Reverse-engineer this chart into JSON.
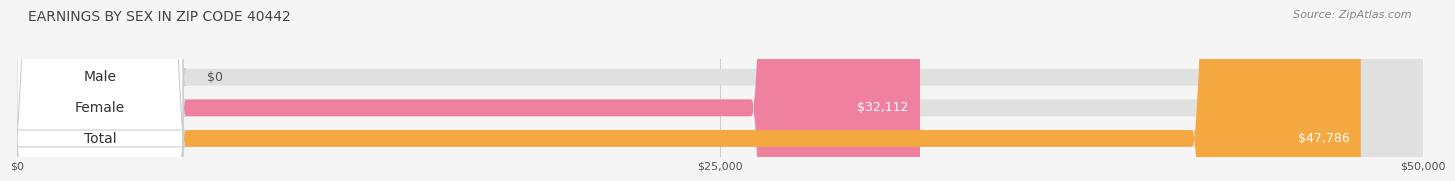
{
  "title": "EARNINGS BY SEX IN ZIP CODE 40442",
  "source": "Source: ZipAtlas.com",
  "categories": [
    "Male",
    "Female",
    "Total"
  ],
  "values": [
    0,
    32112,
    47786
  ],
  "bar_colors": [
    "#a8c8e8",
    "#f080a0",
    "#f5a840"
  ],
  "bar_bg_color": "#e0e0e0",
  "xlim": [
    0,
    50000
  ],
  "xticks": [
    0,
    25000,
    50000
  ],
  "xtick_labels": [
    "$0",
    "$25,000",
    "$50,000"
  ],
  "value_labels": [
    "$0",
    "$32,112",
    "$47,786"
  ],
  "title_fontsize": 10,
  "source_fontsize": 8,
  "label_fontsize": 10,
  "value_fontsize": 9,
  "background_color": "#f5f5f5"
}
